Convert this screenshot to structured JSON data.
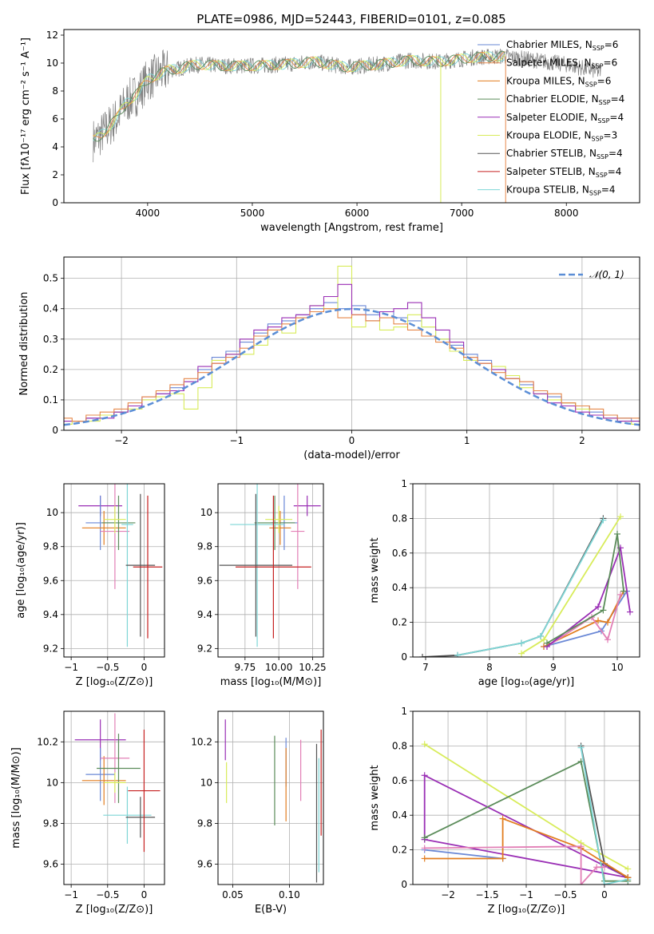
{
  "figure_title": "PLATE=0986, MJD=52443, FIBERID=0101, z=0.085",
  "colors": {
    "Chabrier MILES": "#6a88d6",
    "Salpeter MILES": "#e6884a",
    "Kroupa MILES": "#e27d1f",
    "Chabrier ELODIE": "#5b8c5a",
    "Salpeter ELODIE": "#9a2fb5",
    "Kroupa ELODIE": "#d8ec5a",
    "Chabrier STELIB": "#555555",
    "Salpeter STELIB": "#c62020",
    "Kroupa STELIB": "#7ed6d6",
    "pink": "#e27fb6",
    "spectrum": "#808080",
    "normal": "#5b8ed6"
  },
  "chart_data": [
    {
      "id": "spectrum",
      "type": "line",
      "xlabel": "wavelength [Angstrom, rest frame]",
      "ylabel": "Flux [fλ10⁻¹⁷ erg cm⁻² s⁻¹ A⁻¹]",
      "xlim": [
        3200,
        8700
      ],
      "ylim": [
        0,
        12.4
      ],
      "xticks": [
        4000,
        5000,
        6000,
        7000,
        8000
      ],
      "yticks": [
        0,
        2,
        4,
        6,
        8,
        10,
        12
      ],
      "grid": false,
      "legend_position": "top-right",
      "legend": [
        {
          "name": "Chabrier MILES",
          "sub": "6"
        },
        {
          "name": "Salpeter MILES",
          "sub": "6"
        },
        {
          "name": "Kroupa MILES",
          "sub": "6"
        },
        {
          "name": "Chabrier ELODIE",
          "sub": "4"
        },
        {
          "name": "Salpeter ELODIE",
          "sub": "4"
        },
        {
          "name": "Kroupa ELODIE",
          "sub": "3"
        },
        {
          "name": "Chabrier STELIB",
          "sub": "4"
        },
        {
          "name": "Salpeter STELIB",
          "sub": "4"
        },
        {
          "name": "Kroupa STELIB",
          "sub": "4"
        }
      ],
      "observed_envelope": {
        "x": [
          3500,
          3600,
          3700,
          3800,
          3900,
          4000,
          4100,
          4200,
          4300,
          4400,
          4500,
          4700,
          5000,
          5300,
          5600,
          5900,
          6200,
          6500,
          6800,
          7100,
          7400,
          7700,
          8000,
          8300
        ],
        "y": [
          4.5,
          5.2,
          6.0,
          7.2,
          7.8,
          8.8,
          9.2,
          9.5,
          9.6,
          9.8,
          9.9,
          9.8,
          9.8,
          9.9,
          10.1,
          9.7,
          9.9,
          10.2,
          10.1,
          10.4,
          10.5,
          10.2,
          9.9,
          9.4
        ]
      }
    },
    {
      "id": "residuals",
      "type": "histogram",
      "xlabel": "(data-model)/error",
      "ylabel": "Normed distribution",
      "xlim": [
        -2.5,
        2.5
      ],
      "ylim": [
        0,
        0.57
      ],
      "xticks": [
        -2,
        -1,
        0,
        1,
        2
      ],
      "yticks": [
        0.0,
        0.1,
        0.2,
        0.3,
        0.4,
        0.5
      ],
      "grid": true,
      "legend_position": "top-right",
      "legend": [
        {
          "name": "𝒩(0, 1)"
        }
      ],
      "normal_curve": {
        "mean": 0,
        "sigma": 1
      },
      "histograms": [
        {
          "series": "Chabrier MILES",
          "values": [
            0.03,
            0.03,
            0.04,
            0.05,
            0.06,
            0.08,
            0.1,
            0.12,
            0.14,
            0.16,
            0.2,
            0.24,
            0.26,
            0.29,
            0.32,
            0.35,
            0.36,
            0.38,
            0.4,
            0.42,
            0.4,
            0.41,
            0.38,
            0.39,
            0.37,
            0.36,
            0.34,
            0.3,
            0.28,
            0.25,
            0.23,
            0.2,
            0.17,
            0.15,
            0.13,
            0.11,
            0.09,
            0.08,
            0.06,
            0.05,
            0.04,
            0.03
          ]
        },
        {
          "series": "Kroupa ELODIE",
          "values": [
            0.02,
            0.03,
            0.03,
            0.05,
            0.06,
            0.07,
            0.1,
            0.11,
            0.12,
            0.07,
            0.14,
            0.23,
            0.25,
            0.25,
            0.28,
            0.33,
            0.32,
            0.37,
            0.41,
            0.4,
            0.54,
            0.34,
            0.36,
            0.33,
            0.34,
            0.38,
            0.34,
            0.3,
            0.26,
            0.23,
            0.22,
            0.21,
            0.18,
            0.14,
            0.12,
            0.1,
            0.09,
            0.07,
            0.05,
            0.04,
            0.03,
            0.02
          ]
        },
        {
          "series": "Salpeter ELODIE",
          "values": [
            0.03,
            0.03,
            0.04,
            0.04,
            0.06,
            0.08,
            0.11,
            0.12,
            0.13,
            0.16,
            0.21,
            0.22,
            0.25,
            0.3,
            0.33,
            0.34,
            0.37,
            0.38,
            0.41,
            0.44,
            0.48,
            0.38,
            0.36,
            0.39,
            0.4,
            0.42,
            0.37,
            0.33,
            0.29,
            0.24,
            0.22,
            0.2,
            0.17,
            0.16,
            0.12,
            0.09,
            0.08,
            0.06,
            0.05,
            0.04,
            0.03,
            0.03
          ]
        },
        {
          "series": "Salpeter MILES",
          "values": [
            0.04,
            0.03,
            0.05,
            0.06,
            0.07,
            0.09,
            0.11,
            0.13,
            0.15,
            0.17,
            0.19,
            0.22,
            0.24,
            0.27,
            0.31,
            0.33,
            0.35,
            0.37,
            0.39,
            0.4,
            0.37,
            0.38,
            0.36,
            0.37,
            0.35,
            0.33,
            0.31,
            0.29,
            0.27,
            0.24,
            0.22,
            0.19,
            0.17,
            0.16,
            0.13,
            0.12,
            0.09,
            0.08,
            0.07,
            0.05,
            0.04,
            0.04
          ]
        }
      ]
    },
    {
      "id": "age-vs-Z",
      "type": "errorbar",
      "xlabel": "Z [log₁₀(Z/Z⊙)]",
      "ylabel": "age  [log₁₀(age/yr)]",
      "xlim": [
        -1.1,
        0.28
      ],
      "ylim": [
        9.15,
        10.17
      ],
      "xticks": [
        -1.0,
        -0.5,
        0.0
      ],
      "yticks": [
        9.2,
        9.4,
        9.6,
        9.8,
        10.0
      ],
      "grid": true,
      "points": [
        {
          "series": "Salpeter ELODIE",
          "x": -0.6,
          "xerr": 0.3,
          "y": 10.04,
          "yerr": 0.06
        },
        {
          "series": "Chabrier MILES",
          "x": -0.6,
          "xerr": 0.2,
          "y": 9.94,
          "yerr": 0.16
        },
        {
          "series": "Kroupa MILES",
          "x": -0.55,
          "xerr": 0.3,
          "y": 9.91,
          "yerr": 0.1
        },
        {
          "series": "pink",
          "x": -0.4,
          "xerr": 0.2,
          "y": 9.89,
          "yerr": 0.34
        },
        {
          "series": "Chabrier ELODIE",
          "x": -0.35,
          "xerr": 0.23,
          "y": 9.94,
          "yerr": 0.16
        },
        {
          "series": "Kroupa ELODIE",
          "x": -0.4,
          "xerr": 0.15,
          "y": 9.96,
          "yerr": 0.08
        },
        {
          "series": "Kroupa STELIB",
          "x": -0.23,
          "xerr": 0.08,
          "y": 9.93,
          "yerr": 0.72
        },
        {
          "series": "Chabrier STELIB",
          "x": -0.05,
          "xerr": 0.2,
          "y": 9.69,
          "yerr": 0.42
        },
        {
          "series": "Salpeter STELIB",
          "x": 0.05,
          "xerr": 0.2,
          "y": 9.68,
          "yerr": 0.42
        }
      ]
    },
    {
      "id": "age-vs-mass",
      "type": "errorbar",
      "xlabel": "mass [log₁₀(M/M⊙)]",
      "xlim": [
        9.55,
        10.33
      ],
      "ylim": [
        9.15,
        10.17
      ],
      "xticks": [
        9.75,
        10.0,
        10.25
      ],
      "xticklabels": [
        "9.75",
        "10.00",
        "10.25"
      ],
      "yticks": [
        9.2,
        9.4,
        9.6,
        9.8,
        10.0
      ],
      "grid": true,
      "points": [
        {
          "series": "Salpeter ELODIE",
          "x": 10.21,
          "xerr": 0.1,
          "y": 10.04,
          "yerr": 0.06
        },
        {
          "series": "Chabrier MILES",
          "x": 10.04,
          "xerr": 0.1,
          "y": 9.94,
          "yerr": 0.16
        },
        {
          "series": "Kroupa MILES",
          "x": 10.01,
          "xerr": 0.08,
          "y": 9.91,
          "yerr": 0.1
        },
        {
          "series": "pink",
          "x": 10.14,
          "xerr": 0.05,
          "y": 9.89,
          "yerr": 0.34
        },
        {
          "series": "Chabrier ELODIE",
          "x": 9.97,
          "xerr": 0.15,
          "y": 9.94,
          "yerr": 0.16
        },
        {
          "series": "Kroupa ELODIE",
          "x": 10.0,
          "xerr": 0.1,
          "y": 9.96,
          "yerr": 0.08
        },
        {
          "series": "Kroupa STELIB",
          "x": 9.84,
          "xerr": 0.2,
          "y": 9.93,
          "yerr": 0.72
        },
        {
          "series": "Chabrier STELIB",
          "x": 9.83,
          "xerr": 0.27,
          "y": 9.69,
          "yerr": 0.42
        },
        {
          "series": "Salpeter STELIB",
          "x": 9.96,
          "xerr": 0.28,
          "y": 9.68,
          "yerr": 0.42
        }
      ]
    },
    {
      "id": "mw-vs-age",
      "type": "line",
      "xlabel": "age  [log₁₀(age/yr)]",
      "ylabel": "mass weight",
      "xlim": [
        6.8,
        10.35
      ],
      "ylim": [
        0,
        1.0
      ],
      "xticks": [
        7,
        8,
        9,
        10
      ],
      "yticks": [
        0.0,
        0.2,
        0.4,
        0.6,
        0.8,
        1.0
      ],
      "grid": true,
      "series": [
        {
          "name": "Chabrier MILES",
          "x": [
            8.85,
            9.75,
            10.15
          ],
          "y": [
            0.06,
            0.15,
            0.38
          ]
        },
        {
          "name": "Kroupa MILES",
          "x": [
            8.85,
            9.7,
            9.85,
            10.1
          ],
          "y": [
            0.06,
            0.21,
            0.2,
            0.38
          ]
        },
        {
          "name": "pink",
          "x": [
            8.9,
            9.6,
            9.85,
            10.05
          ],
          "y": [
            0.06,
            0.23,
            0.1,
            0.36
          ]
        },
        {
          "name": "Salpeter ELODIE",
          "x": [
            8.9,
            9.7,
            10.05,
            10.2
          ],
          "y": [
            0.06,
            0.29,
            0.63,
            0.26
          ]
        },
        {
          "name": "Chabrier ELODIE",
          "x": [
            8.9,
            9.78,
            10.0,
            10.1
          ],
          "y": [
            0.08,
            0.27,
            0.71,
            0.38
          ]
        },
        {
          "name": "Kroupa ELODIE",
          "x": [
            8.5,
            8.85,
            10.05
          ],
          "y": [
            0.02,
            0.1,
            0.81
          ]
        },
        {
          "name": "Chabrier STELIB",
          "x": [
            6.95,
            7.5,
            8.5,
            8.8,
            9.78
          ],
          "y": [
            0.0,
            0.01,
            0.08,
            0.12,
            0.8
          ]
        },
        {
          "name": "Kroupa STELIB",
          "x": [
            7.5,
            8.5,
            8.8,
            9.78
          ],
          "y": [
            0.01,
            0.08,
            0.12,
            0.79
          ]
        }
      ]
    },
    {
      "id": "mass-vs-Z",
      "type": "errorbar",
      "xlabel": "Z [log₁₀(Z/Z⊙)]",
      "ylabel": "mass [log₁₀(M/M⊙)]",
      "xlim": [
        -1.1,
        0.28
      ],
      "ylim": [
        9.5,
        10.35
      ],
      "xticks": [
        -1.0,
        -0.5,
        0.0
      ],
      "yticks": [
        9.6,
        9.8,
        10.0,
        10.2
      ],
      "grid": true,
      "points": [
        {
          "series": "Salpeter ELODIE",
          "x": -0.6,
          "xerr": 0.35,
          "y": 10.21,
          "yerr": 0.1
        },
        {
          "series": "Chabrier MILES",
          "x": -0.6,
          "xerr": 0.2,
          "y": 10.04,
          "yerr": 0.13
        },
        {
          "series": "Kroupa MILES",
          "x": -0.55,
          "xerr": 0.3,
          "y": 10.01,
          "yerr": 0.12
        },
        {
          "series": "pink",
          "x": -0.4,
          "xerr": 0.2,
          "y": 10.12,
          "yerr": 0.22
        },
        {
          "series": "Chabrier ELODIE",
          "x": -0.35,
          "xerr": 0.3,
          "y": 10.07,
          "yerr": 0.17
        },
        {
          "series": "Kroupa ELODIE",
          "x": -0.4,
          "xerr": 0.15,
          "y": 10.0,
          "yerr": 0.05
        },
        {
          "series": "Kroupa STELIB",
          "x": -0.23,
          "xerr": 0.33,
          "y": 9.84,
          "yerr": 0.14
        },
        {
          "series": "Chabrier STELIB",
          "x": -0.05,
          "xerr": 0.2,
          "y": 9.83,
          "yerr": 0.1
        },
        {
          "series": "Salpeter STELIB",
          "x": 0.0,
          "xerr": 0.22,
          "y": 9.96,
          "yerr": 0.3
        }
      ]
    },
    {
      "id": "mass-vs-ebv",
      "type": "errorbar",
      "xlabel": "E(B-V)",
      "xlim": [
        0.037,
        0.13
      ],
      "ylim": [
        9.5,
        10.35
      ],
      "xticks": [
        0.05,
        0.1
      ],
      "xticklabels": [
        "0.05",
        "0.10"
      ],
      "yticks": [
        9.6,
        9.8,
        10.0,
        10.2
      ],
      "grid": true,
      "points": [
        {
          "series": "Salpeter ELODIE",
          "x": 0.0435,
          "y": 10.21,
          "yerr": 0.1
        },
        {
          "series": "Kroupa ELODIE",
          "x": 0.0445,
          "y": 10.0,
          "yerr": 0.1
        },
        {
          "series": "Chabrier ELODIE",
          "x": 0.087,
          "y": 10.01,
          "yerr": 0.22
        },
        {
          "series": "Chabrier MILES",
          "x": 0.097,
          "y": 10.1,
          "yerr": 0.12
        },
        {
          "series": "Kroupa MILES",
          "x": 0.097,
          "y": 9.99,
          "yerr": 0.18
        },
        {
          "series": "pink",
          "x": 0.11,
          "y": 10.06,
          "yerr": 0.15
        },
        {
          "series": "Chabrier STELIB",
          "x": 0.124,
          "y": 9.85,
          "yerr": 0.34
        },
        {
          "series": "Kroupa STELIB",
          "x": 0.126,
          "y": 9.84,
          "yerr": 0.28
        },
        {
          "series": "Salpeter STELIB",
          "x": 0.128,
          "y": 10.0,
          "yerr": 0.26
        }
      ]
    },
    {
      "id": "mw-vs-Z",
      "type": "line",
      "xlabel": "Z [log₁₀(Z/Z⊙)]",
      "ylabel": "mass weight",
      "xlim": [
        -2.45,
        0.45
      ],
      "ylim": [
        0,
        1.0
      ],
      "xticks": [
        -2.0,
        -1.5,
        -1.0,
        -0.5,
        0.0
      ],
      "yticks": [
        0.0,
        0.2,
        0.4,
        0.6,
        0.8,
        1.0
      ],
      "grid": true,
      "series": [
        {
          "name": "Kroupa ELODIE",
          "x": [
            -2.3,
            -0.3,
            0.3
          ],
          "y": [
            0.81,
            0.24,
            0.09
          ]
        },
        {
          "name": "Salpeter ELODIE",
          "x": [
            -2.3,
            -2.3,
            0.3,
            -2.3
          ],
          "y": [
            0.26,
            0.63,
            0.04,
            0.26
          ]
        },
        {
          "name": "Chabrier ELODIE",
          "x": [
            -2.3,
            -0.3,
            0.0,
            0.3
          ],
          "y": [
            0.27,
            0.71,
            0.02,
            0.02
          ]
        },
        {
          "name": "Chabrier STELIB",
          "x": [
            -0.3,
            0.0,
            0.3
          ],
          "y": [
            0.8,
            0.12,
            0.04
          ]
        },
        {
          "name": "Kroupa STELIB",
          "x": [
            -0.3,
            0.0,
            0.3
          ],
          "y": [
            0.79,
            0.0,
            0.03
          ]
        },
        {
          "name": "Chabrier MILES",
          "x": [
            -2.3,
            -1.3,
            -1.3
          ],
          "y": [
            0.2,
            0.15,
            0.15
          ]
        },
        {
          "name": "Kroupa MILES",
          "x": [
            -2.3,
            -1.3,
            -1.3,
            -0.3,
            0.3
          ],
          "y": [
            0.15,
            0.15,
            0.38,
            0.21,
            0.04
          ]
        },
        {
          "name": "pink",
          "x": [
            -2.3,
            -0.3,
            -0.3,
            -0.1,
            0.0
          ],
          "y": [
            0.21,
            0.22,
            0.0,
            0.1,
            0.1
          ]
        }
      ]
    }
  ]
}
